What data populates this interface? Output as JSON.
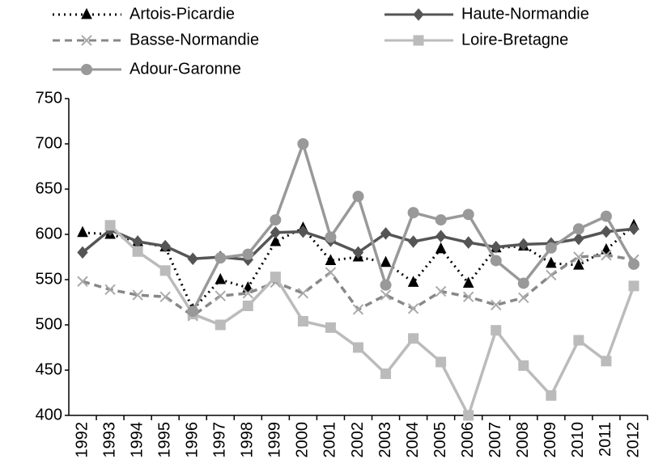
{
  "chart_data": {
    "type": "line",
    "categories": [
      "1992",
      "1993",
      "1994",
      "1995",
      "1996",
      "1997",
      "1998",
      "1999",
      "2000",
      "2001",
      "2002",
      "2003",
      "2004",
      "2005",
      "2006",
      "2007",
      "2008",
      "2009",
      "2010",
      "2011",
      "2012"
    ],
    "series": [
      {
        "name": "Artois-Picardie",
        "color": "#000000",
        "marker": "triangle",
        "dash": "dotted",
        "values": [
          602,
          600,
          592,
          586,
          517,
          550,
          541,
          592,
          607,
          571,
          575,
          569,
          547,
          584,
          546,
          585,
          587,
          568,
          566,
          583,
          610
        ]
      },
      {
        "name": "Haute-Normandie",
        "color": "#555555",
        "marker": "diamond",
        "dash": "solid",
        "values": [
          580,
          605,
          592,
          587,
          573,
          575,
          572,
          602,
          603,
          593,
          580,
          601,
          592,
          598,
          591,
          586,
          589,
          590,
          595,
          603,
          606
        ]
      },
      {
        "name": "Basse-Normandie",
        "color": "#888888",
        "marker": "x",
        "dash": "dashed",
        "values": [
          548,
          539,
          533,
          531,
          510,
          532,
          535,
          547,
          535,
          558,
          517,
          533,
          518,
          537,
          531,
          522,
          530,
          555,
          575,
          577,
          572
        ]
      },
      {
        "name": "Loire-Bretagne",
        "color": "#bbbbbb",
        "marker": "square",
        "dash": "solid",
        "values": [
          null,
          610,
          581,
          560,
          512,
          500,
          521,
          553,
          504,
          497,
          475,
          446,
          485,
          459,
          400,
          494,
          455,
          422,
          483,
          460,
          543
        ]
      },
      {
        "name": "Adour-Garonne",
        "color": "#999999",
        "marker": "circle",
        "dash": "solid",
        "values": [
          null,
          null,
          null,
          null,
          515,
          574,
          578,
          616,
          700,
          597,
          642,
          544,
          624,
          616,
          622,
          571,
          546,
          585,
          606,
          620,
          567
        ]
      }
    ],
    "ylim": [
      400,
      750
    ],
    "yticks": [
      400,
      450,
      500,
      550,
      600,
      650,
      700,
      750
    ]
  }
}
